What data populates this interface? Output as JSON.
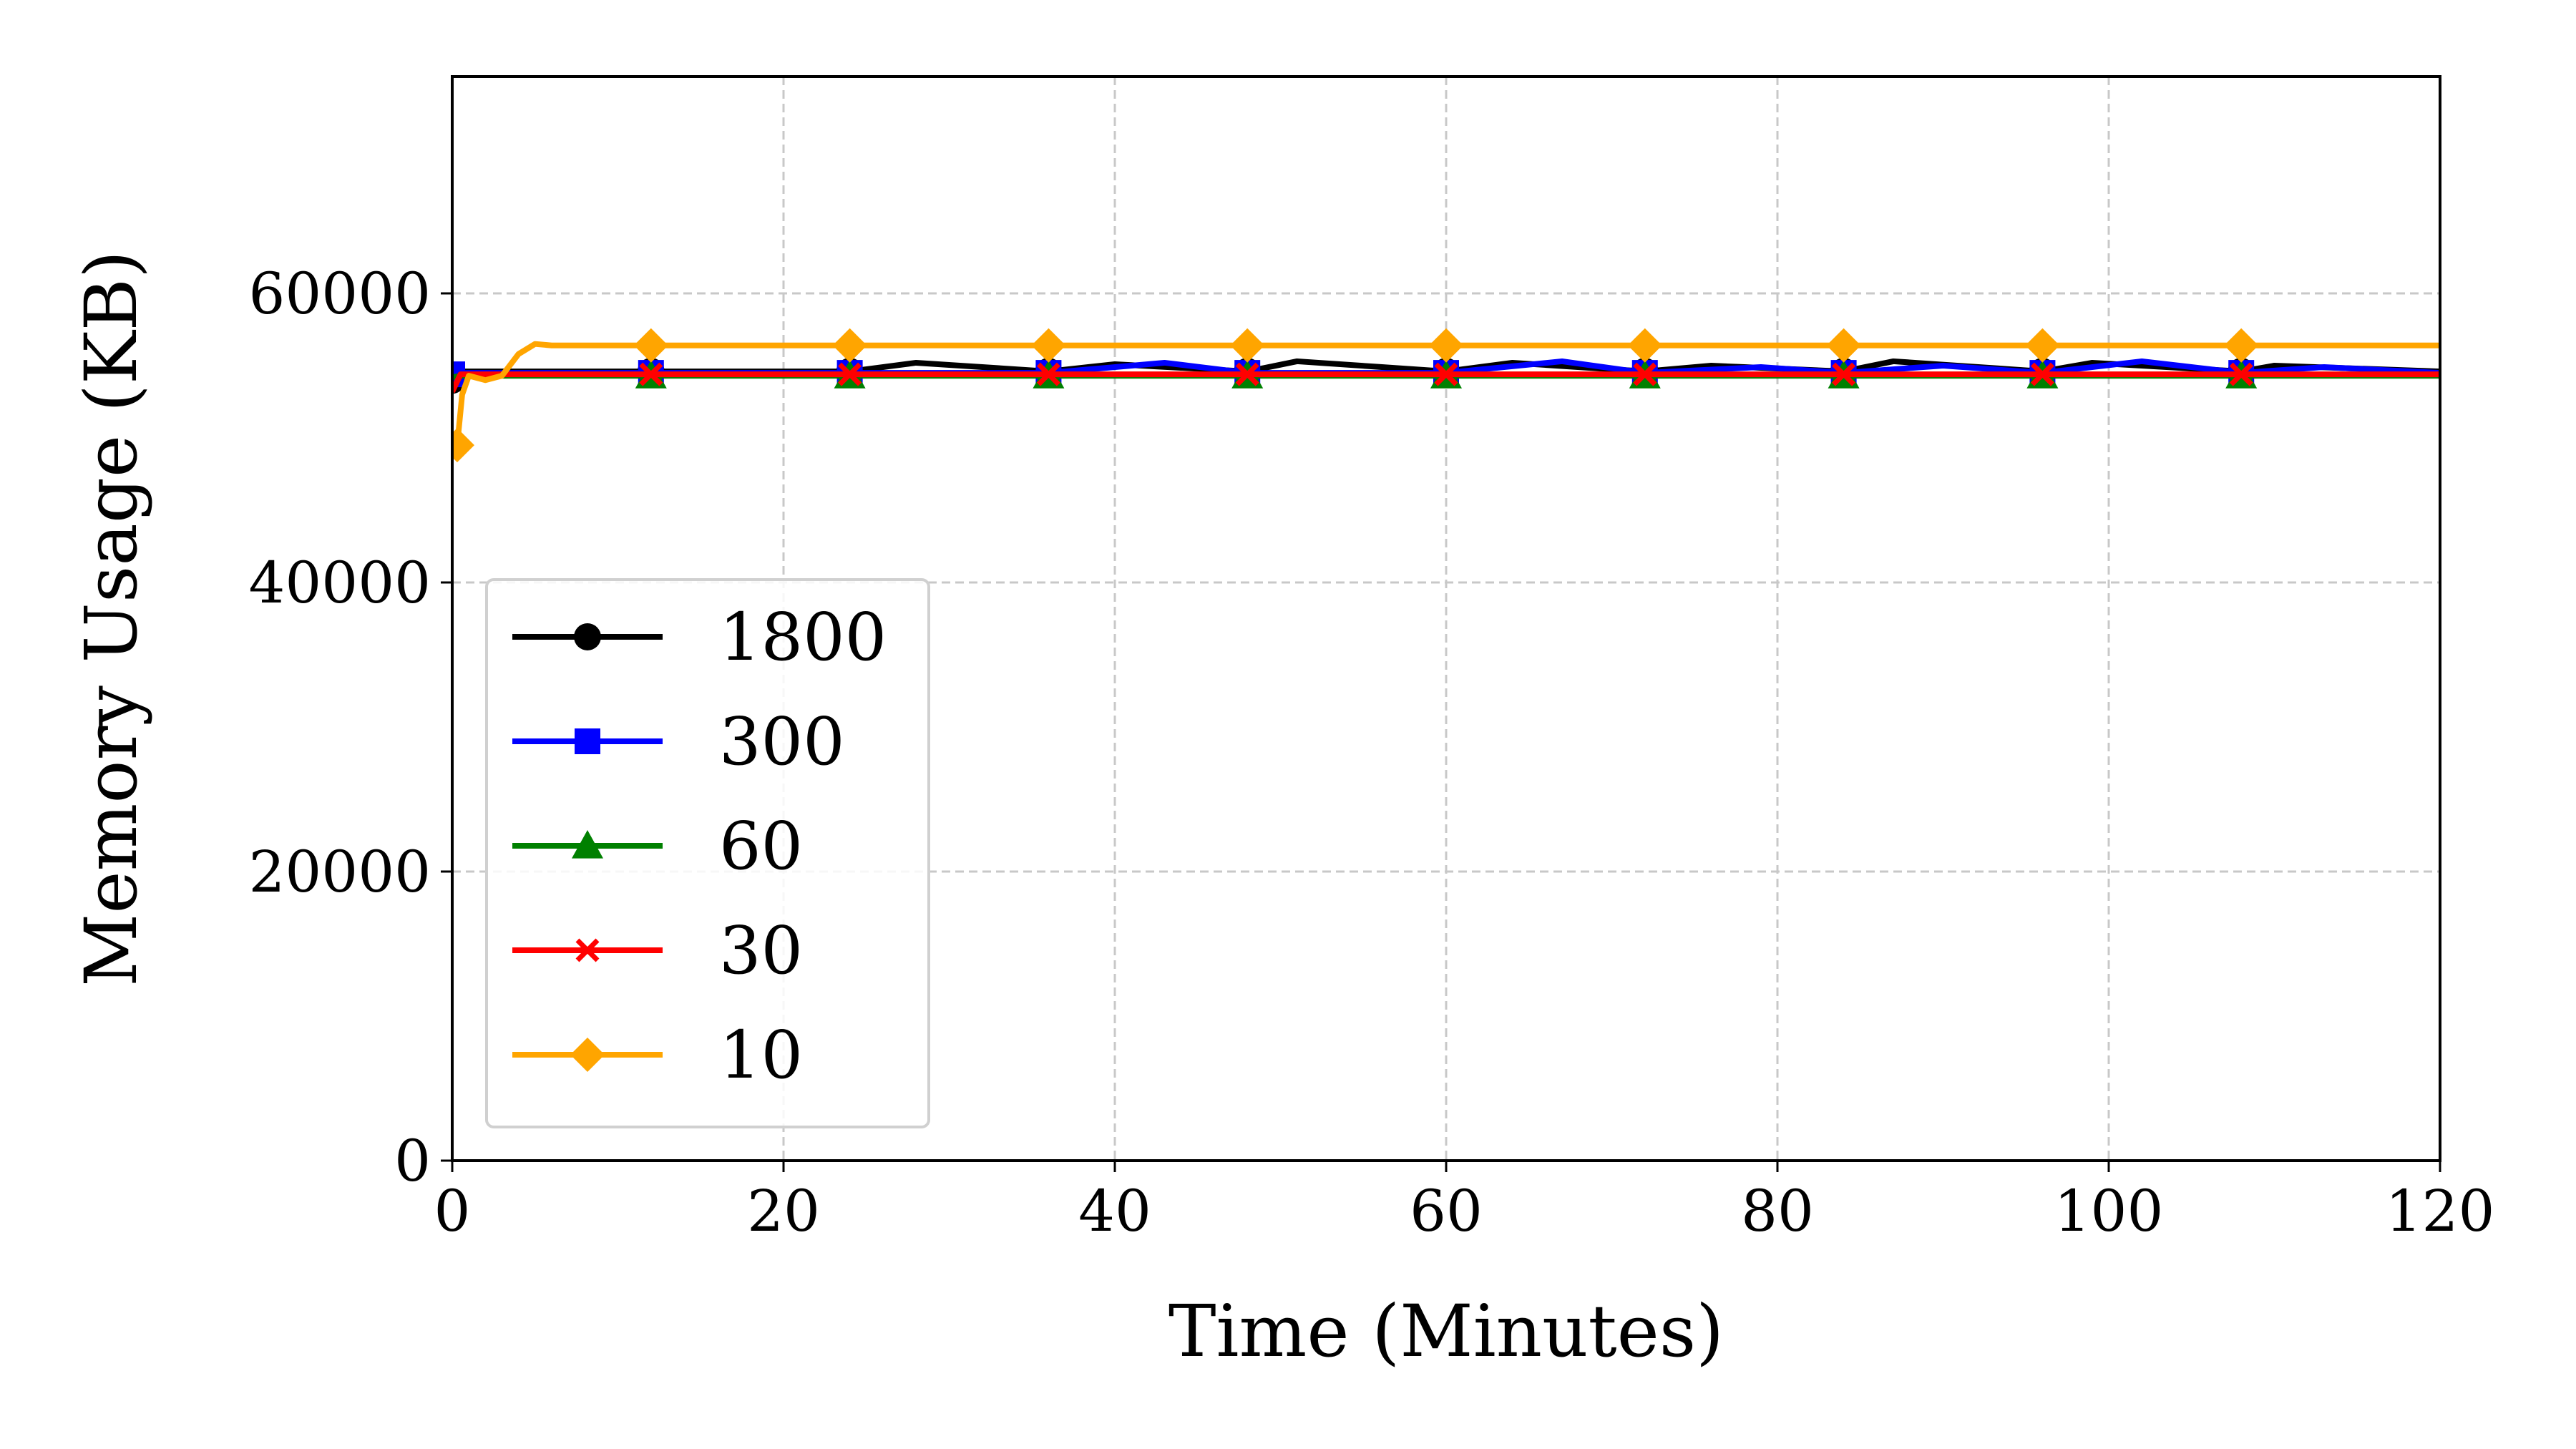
{
  "chart_data": {
    "type": "line",
    "title": "",
    "xlabel": "Time (Minutes)",
    "ylabel": "Memory Usage (KB)",
    "xlim": [
      0,
      120
    ],
    "ylim": [
      0,
      75000
    ],
    "xticks": [
      "0",
      "20",
      "40",
      "60",
      "80",
      "100",
      "120"
    ],
    "yticks": [
      "0",
      "20000",
      "40000",
      "60000"
    ],
    "grid": true,
    "legend_position": "lower-left",
    "series": [
      {
        "name": "1800",
        "color": "#000000",
        "marker": "circle",
        "x": [
          0,
          0.5,
          12,
          24,
          28,
          36,
          40,
          48,
          51,
          60,
          64,
          72,
          76,
          84,
          87,
          96,
          99,
          108,
          110,
          120
        ],
        "y": [
          54000,
          54600,
          54600,
          54600,
          55200,
          54600,
          55100,
          54600,
          55300,
          54600,
          55200,
          54600,
          55000,
          54600,
          55300,
          54600,
          55200,
          54600,
          55000,
          54600
        ],
        "markers_x": [
          0,
          12,
          24,
          36,
          48,
          60,
          72,
          84,
          96,
          108
        ]
      },
      {
        "name": "300",
        "color": "#0000ff",
        "marker": "square",
        "x": [
          0,
          0.5,
          12,
          24,
          36,
          43,
          48,
          60,
          67,
          72,
          79,
          84,
          90,
          96,
          102,
          108,
          113,
          120
        ],
        "y": [
          54400,
          54500,
          54500,
          54500,
          54500,
          55200,
          54500,
          54500,
          55300,
          54500,
          54900,
          54500,
          55000,
          54500,
          55300,
          54500,
          54900,
          54500
        ],
        "markers_x": [
          0,
          12,
          24,
          36,
          48,
          60,
          72,
          84,
          96,
          108
        ]
      },
      {
        "name": "60",
        "color": "#008000",
        "marker": "triangle",
        "x": [
          0,
          0.5,
          12,
          24,
          36,
          48,
          60,
          72,
          84,
          96,
          108,
          120
        ],
        "y": [
          54200,
          54300,
          54300,
          54300,
          54300,
          54300,
          54300,
          54300,
          54300,
          54300,
          54300,
          54300
        ],
        "markers_x": [
          12,
          24,
          36,
          48,
          60,
          72,
          84,
          96,
          108
        ]
      },
      {
        "name": "30",
        "color": "#ff0000",
        "marker": "x",
        "x": [
          0,
          0.5,
          12,
          24,
          36,
          48,
          60,
          72,
          84,
          96,
          108,
          120
        ],
        "y": [
          53200,
          54400,
          54400,
          54400,
          54400,
          54400,
          54400,
          54400,
          54400,
          54400,
          54400,
          54400
        ],
        "markers_x": [
          12,
          24,
          36,
          48,
          60,
          72,
          84,
          96,
          108
        ]
      },
      {
        "name": "10",
        "color": "#ffa500",
        "marker": "diamond",
        "x": [
          0.3,
          0.6,
          1,
          2,
          3,
          4,
          5,
          6,
          12,
          24,
          36,
          48,
          60,
          72,
          84,
          96,
          108,
          120
        ],
        "y": [
          49500,
          53000,
          54300,
          54000,
          54300,
          55800,
          56500,
          56400,
          56400,
          56400,
          56400,
          56400,
          56400,
          56400,
          56400,
          56400,
          56400,
          56400
        ],
        "markers_x": [
          0.3,
          12,
          24,
          36,
          48,
          60,
          72,
          84,
          96,
          108
        ]
      }
    ]
  }
}
